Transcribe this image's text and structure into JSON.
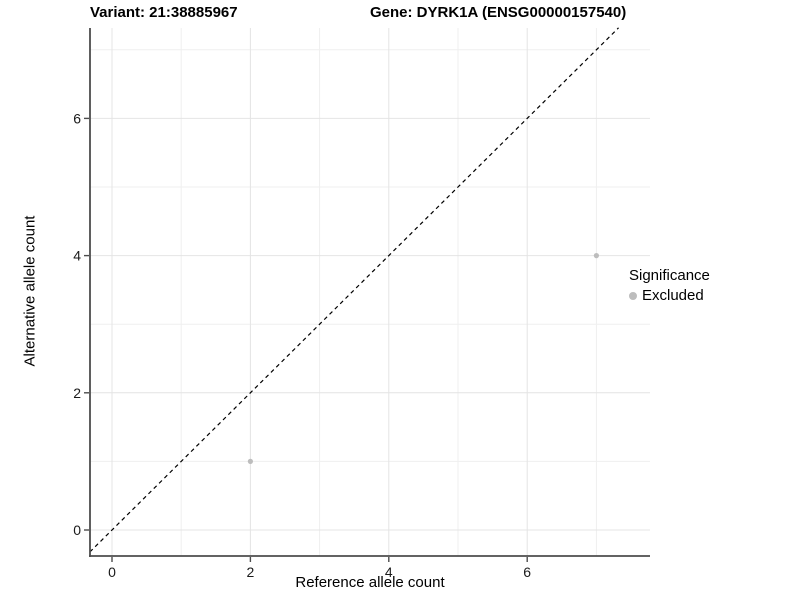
{
  "figure": {
    "title_left": "Variant: 21:38885967",
    "title_right": "Gene: DYRK1A (ENSG00000157540)"
  },
  "chart_data": {
    "type": "scatter",
    "xlabel": "Reference allele count",
    "ylabel": "Alternative allele count",
    "x_ticks": [
      0,
      2,
      4,
      6
    ],
    "y_ticks": [
      0,
      2,
      4,
      6
    ],
    "x_minor_gridlines": [
      1,
      3,
      5,
      7
    ],
    "y_minor_gridlines": [
      1,
      3,
      5,
      7
    ],
    "xlim": [
      -0.32,
      7.78
    ],
    "ylim": [
      -0.38,
      7.32
    ],
    "grid": true,
    "identity_line": {
      "present": true,
      "style": "dashed",
      "color": "#000000",
      "slope": 1,
      "intercept": 0
    },
    "series": [
      {
        "name": "Excluded",
        "color": "#bdbdbd",
        "points": [
          {
            "x": 2,
            "y": 1
          },
          {
            "x": 7,
            "y": 4
          }
        ]
      }
    ],
    "legend": {
      "position": "right",
      "title": "Significance",
      "items": [
        {
          "label": "Excluded",
          "color": "#bdbdbd"
        }
      ]
    }
  },
  "colors": {
    "axis_line": "#4d4d4d",
    "major_grid": "#e4e4e4",
    "minor_grid": "#efefef",
    "tick_label": "#1a1a1a",
    "point": "#bdbdbd"
  }
}
